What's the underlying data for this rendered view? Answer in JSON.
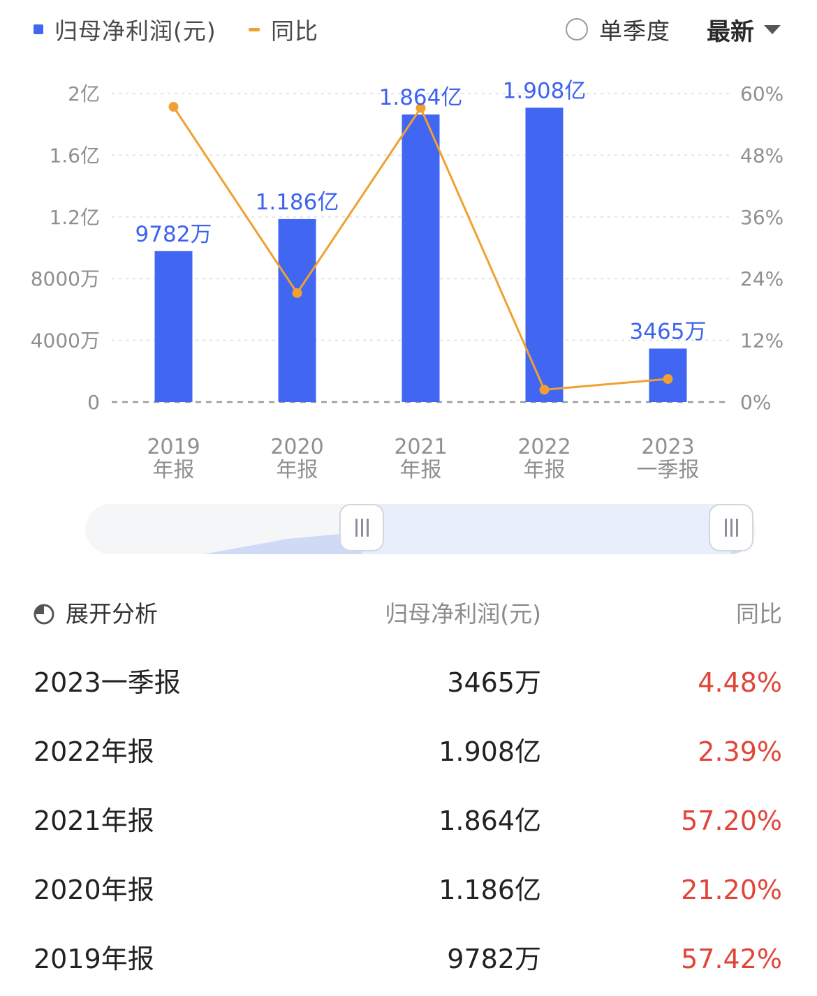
{
  "legend": {
    "series1": "归母净利润(元)",
    "series2": "同比",
    "quarter_toggle": "单季度",
    "sort_label": "最新",
    "bar_color": "#4066f2",
    "line_color": "#f0a030"
  },
  "chart_data": {
    "type": "bar",
    "categories": [
      "2019\n年报",
      "2020\n年报",
      "2021\n年报",
      "2022\n年报",
      "2023\n一季报"
    ],
    "y_left_ticks": [
      "0",
      "4000万",
      "8000万",
      "1.2亿",
      "1.6亿",
      "2亿"
    ],
    "y_left_range": [
      0,
      200000000
    ],
    "y_right_ticks": [
      "0%",
      "12%",
      "24%",
      "36%",
      "48%",
      "60%"
    ],
    "y_right_range": [
      0,
      60
    ],
    "series": [
      {
        "name": "归母净利润(元)",
        "type": "bar",
        "values": [
          97820000,
          118600000,
          186400000,
          190800000,
          34650000
        ],
        "labels": [
          "9782万",
          "1.186亿",
          "1.864亿",
          "1.908亿",
          "3465万"
        ]
      },
      {
        "name": "同比",
        "type": "line",
        "axis": "right",
        "values": [
          57.42,
          21.2,
          57.2,
          2.39,
          4.48
        ]
      }
    ],
    "grid": true
  },
  "table": {
    "expand_label": "展开分析",
    "col_value": "归母净利润(元)",
    "col_yoy": "同比",
    "rows": [
      {
        "period": "2023一季报",
        "value": "3465万",
        "yoy": "4.48%"
      },
      {
        "period": "2022年报",
        "value": "1.908亿",
        "yoy": "2.39%"
      },
      {
        "period": "2021年报",
        "value": "1.864亿",
        "yoy": "57.20%"
      },
      {
        "period": "2020年报",
        "value": "1.186亿",
        "yoy": "21.20%"
      },
      {
        "period": "2019年报",
        "value": "9782万",
        "yoy": "57.42%"
      }
    ]
  }
}
